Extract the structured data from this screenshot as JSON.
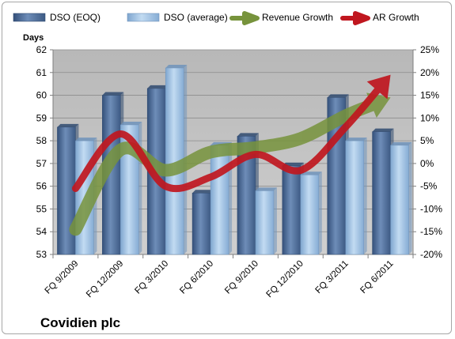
{
  "colors": {
    "dso_eoq": "#4f6f99",
    "dso_average": "#9dc3e6",
    "revenue_growth": "#77933c",
    "ar_growth": "#c0171f",
    "plot_background": "#bfbfbf"
  },
  "company": "Covidien plc",
  "chart_data": {
    "type": "bar",
    "title": "",
    "ylabel": "Days",
    "ylim": [
      53,
      62
    ],
    "y2lim": [
      -20,
      25
    ],
    "y_ticks": [
      "53",
      "54",
      "55",
      "56",
      "57",
      "58",
      "59",
      "60",
      "61",
      "62"
    ],
    "y2_ticks": [
      "-20%",
      "-15%",
      "-10%",
      "-5%",
      "0%",
      "5%",
      "10%",
      "15%",
      "20%",
      "25%"
    ],
    "legend_position": "top",
    "grid": true,
    "categories": [
      "FQ 9/2009",
      "FQ 12/2009",
      "FQ 3/2010",
      "FQ 6/2010",
      "FQ 9/2010",
      "FQ 12/2010",
      "FQ 3/2011",
      "FQ 6/2011"
    ],
    "series": [
      {
        "name": "DSO (EOQ)",
        "type": "bar",
        "axis": "left",
        "values": [
          58.6,
          60.0,
          60.3,
          55.7,
          58.2,
          56.9,
          59.9,
          58.4
        ]
      },
      {
        "name": "DSO (average)",
        "type": "bar",
        "axis": "left",
        "values": [
          58.0,
          58.7,
          61.2,
          57.8,
          55.8,
          56.5,
          58.0,
          57.8
        ]
      },
      {
        "name": "Revenue Growth",
        "type": "line-arrow",
        "axis": "right",
        "unit": "%",
        "values": [
          -14.5,
          3.0,
          -1.5,
          2.5,
          3.5,
          5.5,
          10.5,
          14.5
        ]
      },
      {
        "name": "AR Growth",
        "type": "line-arrow",
        "axis": "right",
        "unit": "%",
        "values": [
          -5.5,
          6.5,
          -5.0,
          -3.0,
          2.0,
          -1.5,
          8.0,
          19.5
        ]
      }
    ]
  }
}
